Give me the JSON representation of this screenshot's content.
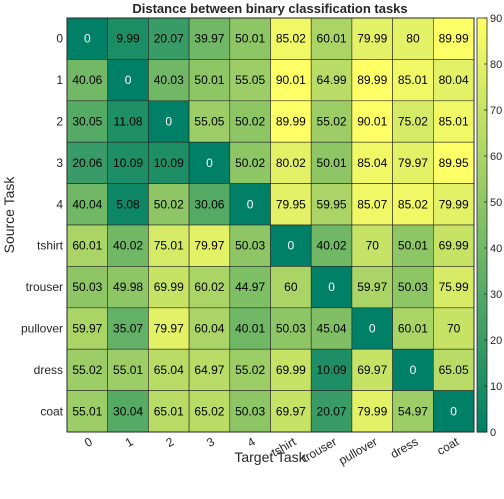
{
  "chart_data": {
    "type": "heatmap",
    "title": "Distance between binary classification tasks",
    "xlabel": "Target Task",
    "ylabel": "Source Task",
    "x_categories": [
      "0",
      "1",
      "2",
      "3",
      "4",
      "tshirt",
      "trouser",
      "pullover",
      "dress",
      "coat"
    ],
    "y_categories": [
      "0",
      "1",
      "2",
      "3",
      "4",
      "tshirt",
      "trouser",
      "pullover",
      "dress",
      "coat"
    ],
    "values": [
      [
        "0",
        "9.99",
        "20.07",
        "39.97",
        "50.01",
        "85.02",
        "60.01",
        "79.99",
        "80",
        "89.99"
      ],
      [
        "40.06",
        "0",
        "40.03",
        "50.01",
        "55.05",
        "90.01",
        "64.99",
        "89.99",
        "85.01",
        "80.04"
      ],
      [
        "30.05",
        "11.08",
        "0",
        "55.05",
        "50.02",
        "89.99",
        "55.02",
        "90.01",
        "75.02",
        "85.01"
      ],
      [
        "20.06",
        "10.09",
        "10.09",
        "0",
        "50.02",
        "80.02",
        "50.01",
        "85.04",
        "79.97",
        "89.95"
      ],
      [
        "40.04",
        "5.08",
        "50.02",
        "30.06",
        "0",
        "79.95",
        "59.95",
        "85.07",
        "85.02",
        "79.99"
      ],
      [
        "60.01",
        "40.02",
        "75.01",
        "79.97",
        "50.03",
        "0",
        "40.02",
        "70",
        "50.01",
        "69.99"
      ],
      [
        "50.03",
        "49.98",
        "69.99",
        "60.02",
        "44.97",
        "60",
        "0",
        "59.97",
        "50.03",
        "75.99"
      ],
      [
        "59.97",
        "35.07",
        "79.97",
        "60.04",
        "40.01",
        "50.03",
        "45.04",
        "0",
        "60.01",
        "70"
      ],
      [
        "55.02",
        "55.01",
        "65.04",
        "64.97",
        "55.02",
        "69.99",
        "10.09",
        "69.97",
        "0",
        "65.05"
      ],
      [
        "55.01",
        "30.04",
        "65.01",
        "65.02",
        "50.03",
        "69.97",
        "20.07",
        "79.99",
        "54.97",
        "0"
      ]
    ],
    "colorbar": {
      "min": 0,
      "max": 90,
      "ticks": [
        "0",
        "10",
        "20",
        "30",
        "40",
        "50",
        "60",
        "70",
        "80",
        "90"
      ],
      "colormap": "summer"
    }
  }
}
